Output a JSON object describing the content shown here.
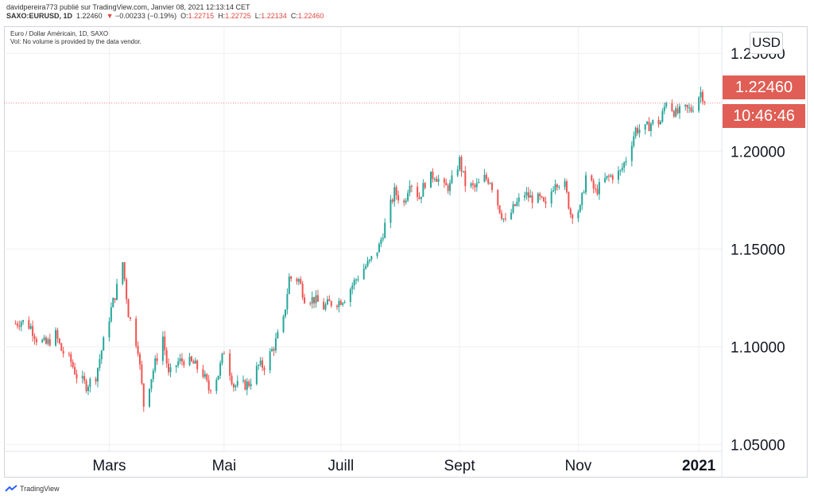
{
  "header": {
    "publisher_line": "davidpereira773 publié sur TradingView.com, Janvier 08, 2021 12:13:14 CET",
    "symbol": "SAXO:EURUSD, 1D",
    "last": "1.22460",
    "change_arrow": "▼",
    "change": "−0.00233 (−0.19%)",
    "open_label": "O:",
    "open": "1.22715",
    "high_label": "H:",
    "high": "1.22725",
    "low_label": "L:",
    "low": "1.22134",
    "close_label": "C:",
    "close": "1.22460"
  },
  "legend": {
    "title": "Euro / Dollar Américain, 1D, SAXO",
    "volume_note": "Vol: No volume is provided by the data vendor."
  },
  "currency_button": "USD",
  "price_label": "1.22460",
  "countdown_label": "10:46:46",
  "footer": {
    "brand": "TradingView",
    "logo_icon": "tradingview-logo-icon"
  },
  "colors": {
    "up": "#26a69a",
    "down": "#ef5350",
    "grid": "#eef0f3",
    "price_line": "#ef5350",
    "price_box": "#e05e55"
  },
  "chart_data": {
    "type": "candlestick",
    "ylim": [
      1.0465,
      1.2635
    ],
    "y_ticks": [
      "1.05000",
      "1.10000",
      "1.15000",
      "1.20000",
      "1.25000"
    ],
    "x_ticks": [
      {
        "label": "Mars",
        "date": "2020-03-02",
        "bold": false
      },
      {
        "label": "Mai",
        "date": "2020-05-01",
        "bold": false
      },
      {
        "label": "Juill",
        "date": "2020-07-01",
        "bold": false
      },
      {
        "label": "Sept",
        "date": "2020-09-01",
        "bold": false
      },
      {
        "label": "Nov",
        "date": "2020-11-02",
        "bold": false
      },
      {
        "label": "2021",
        "date": "2021-01-04",
        "bold": true
      }
    ],
    "last_price": 1.2246,
    "closes": [
      [
        "2020-01-13",
        1.1118
      ],
      [
        "2020-01-16",
        1.1132
      ],
      [
        "2020-01-21",
        1.1102
      ],
      [
        "2020-01-24",
        1.1042
      ],
      [
        "2020-01-29",
        1.1012
      ],
      [
        "2020-02-03",
        1.1062
      ],
      [
        "2020-02-06",
        1.0982
      ],
      [
        "2020-02-11",
        1.0922
      ],
      [
        "2020-02-14",
        1.0852
      ],
      [
        "2020-02-19",
        1.0802
      ],
      [
        "2020-02-24",
        1.0852
      ],
      [
        "2020-02-27",
        1.0982
      ],
      [
        "2020-03-03",
        1.1192
      ],
      [
        "2020-03-06",
        1.1302
      ],
      [
        "2020-03-09",
        1.1432
      ],
      [
        "2020-03-12",
        1.1172
      ],
      [
        "2020-03-17",
        1.0992
      ],
      [
        "2020-03-20",
        1.0702
      ],
      [
        "2020-03-25",
        1.0882
      ],
      [
        "2020-03-30",
        1.1052
      ],
      [
        "2020-04-02",
        1.0852
      ],
      [
        "2020-04-07",
        1.0922
      ],
      [
        "2020-04-10",
        1.0932
      ],
      [
        "2020-04-15",
        1.0912
      ],
      [
        "2020-04-20",
        1.0862
      ],
      [
        "2020-04-23",
        1.0782
      ],
      [
        "2020-04-28",
        1.0862
      ],
      [
        "2020-05-01",
        1.0982
      ],
      [
        "2020-05-06",
        1.0802
      ],
      [
        "2020-05-11",
        1.0802
      ],
      [
        "2020-05-14",
        1.0812
      ],
      [
        "2020-05-19",
        1.0902
      ],
      [
        "2020-05-22",
        1.0902
      ],
      [
        "2020-05-27",
        1.1002
      ],
      [
        "2020-06-01",
        1.1132
      ],
      [
        "2020-06-04",
        1.1352
      ],
      [
        "2020-06-09",
        1.1342
      ],
      [
        "2020-06-12",
        1.1252
      ],
      [
        "2020-06-17",
        1.1242
      ],
      [
        "2020-06-22",
        1.1202
      ],
      [
        "2020-06-25",
        1.1222
      ],
      [
        "2020-06-30",
        1.1232
      ],
      [
        "2020-07-03",
        1.1252
      ],
      [
        "2020-07-08",
        1.1332
      ],
      [
        "2020-07-13",
        1.1402
      ],
      [
        "2020-07-16",
        1.1432
      ],
      [
        "2020-07-21",
        1.1512
      ],
      [
        "2020-07-24",
        1.1622
      ],
      [
        "2020-07-29",
        1.1792
      ],
      [
        "2020-08-03",
        1.1732
      ],
      [
        "2020-08-06",
        1.1852
      ],
      [
        "2020-08-11",
        1.1762
      ],
      [
        "2020-08-14",
        1.1842
      ],
      [
        "2020-08-19",
        1.1882
      ],
      [
        "2020-08-24",
        1.1812
      ],
      [
        "2020-08-27",
        1.1822
      ],
      [
        "2020-09-01",
        1.1952
      ],
      [
        "2020-09-04",
        1.1832
      ],
      [
        "2020-09-09",
        1.1812
      ],
      [
        "2020-09-14",
        1.1862
      ],
      [
        "2020-09-17",
        1.1852
      ],
      [
        "2020-09-22",
        1.1702
      ],
      [
        "2020-09-25",
        1.1632
      ],
      [
        "2020-09-30",
        1.1722
      ],
      [
        "2020-10-05",
        1.1782
      ],
      [
        "2020-10-08",
        1.1762
      ],
      [
        "2020-10-13",
        1.1752
      ],
      [
        "2020-10-16",
        1.1712
      ],
      [
        "2020-10-21",
        1.1852
      ],
      [
        "2020-10-26",
        1.1822
      ],
      [
        "2020-10-29",
        1.1682
      ],
      [
        "2020-11-03",
        1.1702
      ],
      [
        "2020-11-06",
        1.1872
      ],
      [
        "2020-11-11",
        1.1792
      ],
      [
        "2020-11-16",
        1.1852
      ],
      [
        "2020-11-19",
        1.1872
      ],
      [
        "2020-11-24",
        1.1892
      ],
      [
        "2020-11-27",
        1.1962
      ],
      [
        "2020-12-02",
        1.2112
      ],
      [
        "2020-12-07",
        1.2112
      ],
      [
        "2020-12-10",
        1.2142
      ],
      [
        "2020-12-15",
        1.2152
      ],
      [
        "2020-12-18",
        1.2262
      ],
      [
        "2020-12-23",
        1.2192
      ],
      [
        "2020-12-28",
        1.2212
      ],
      [
        "2020-12-31",
        1.2212
      ],
      [
        "2021-01-05",
        1.2302
      ],
      [
        "2021-01-08",
        1.2246
      ]
    ]
  }
}
